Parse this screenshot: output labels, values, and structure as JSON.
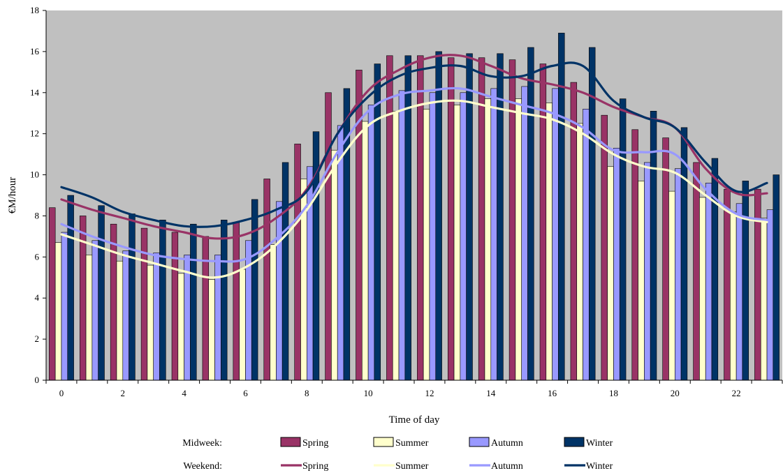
{
  "chart_data": {
    "type": "bar",
    "title": "",
    "xlabel": "Time of day",
    "ylabel": "€M/hour",
    "ylim": [
      0,
      18
    ],
    "yticks": [
      0,
      2,
      4,
      6,
      8,
      10,
      12,
      14,
      16,
      18
    ],
    "xticks": [
      0,
      2,
      4,
      6,
      8,
      10,
      12,
      14,
      16,
      18,
      20,
      22
    ],
    "x": [
      0,
      1,
      2,
      3,
      4,
      5,
      6,
      7,
      8,
      9,
      10,
      11,
      12,
      13,
      14,
      15,
      16,
      17,
      18,
      19,
      20,
      21,
      22,
      23
    ],
    "plot_background": "#c0c0c0",
    "grid": false,
    "legend_position": "bottom",
    "legend": {
      "midweek_label": "Midweek:",
      "weekend_label": "Weekend:"
    },
    "midweek_series": [
      {
        "name": "Spring",
        "color": "#993366",
        "values": [
          8.4,
          8.0,
          7.6,
          7.4,
          7.2,
          7.0,
          7.7,
          9.8,
          11.5,
          14.0,
          15.1,
          15.8,
          15.8,
          15.7,
          15.7,
          15.6,
          15.4,
          14.5,
          12.9,
          12.2,
          11.8,
          10.6,
          9.3,
          9.3
        ]
      },
      {
        "name": "Summer",
        "color": "#ffffcc",
        "values": [
          6.7,
          6.1,
          5.8,
          5.6,
          5.2,
          4.9,
          5.4,
          6.6,
          9.8,
          11.2,
          12.6,
          13.1,
          13.2,
          13.4,
          13.7,
          13.7,
          13.5,
          12.5,
          10.4,
          9.7,
          9.2,
          8.9,
          8.2,
          7.9
        ]
      },
      {
        "name": "Autumn",
        "color": "#9999ff",
        "values": [
          7.2,
          6.8,
          6.3,
          6.2,
          6.1,
          6.1,
          6.8,
          8.7,
          10.4,
          12.4,
          13.4,
          14.1,
          14.0,
          14.0,
          14.2,
          14.3,
          14.2,
          13.2,
          11.3,
          10.6,
          10.3,
          9.6,
          8.6,
          8.3
        ]
      },
      {
        "name": "Winter",
        "color": "#003366",
        "values": [
          9.0,
          8.5,
          8.1,
          7.8,
          7.6,
          7.8,
          8.8,
          10.6,
          12.1,
          14.2,
          15.4,
          15.8,
          16.0,
          15.9,
          15.9,
          16.2,
          16.9,
          16.2,
          13.7,
          13.1,
          12.3,
          10.8,
          9.7,
          10.0
        ]
      }
    ],
    "weekend_series": [
      {
        "name": "Spring",
        "color": "#993366",
        "values": [
          8.8,
          8.3,
          7.9,
          7.5,
          7.2,
          6.9,
          7.1,
          7.9,
          9.3,
          12.0,
          14.1,
          15.1,
          15.7,
          15.8,
          15.3,
          14.7,
          14.4,
          14.0,
          13.3,
          12.8,
          12.3,
          10.3,
          9.1,
          9.1
        ]
      },
      {
        "name": "Summer",
        "color": "#ffffcc",
        "values": [
          7.1,
          6.6,
          6.1,
          5.7,
          5.3,
          5.0,
          5.5,
          6.6,
          8.3,
          10.6,
          12.4,
          13.1,
          13.5,
          13.6,
          13.3,
          13.0,
          12.7,
          12.0,
          11.0,
          10.4,
          10.1,
          9.0,
          8.0,
          7.7
        ]
      },
      {
        "name": "Autumn",
        "color": "#9999ff",
        "values": [
          7.6,
          7.0,
          6.5,
          6.1,
          5.9,
          5.8,
          5.9,
          6.9,
          8.5,
          11.1,
          13.1,
          13.9,
          14.1,
          14.2,
          13.8,
          13.4,
          13.0,
          12.3,
          11.2,
          11.1,
          11.0,
          9.3,
          8.1,
          7.8
        ]
      },
      {
        "name": "Winter",
        "color": "#003366",
        "values": [
          9.4,
          8.9,
          8.2,
          7.8,
          7.5,
          7.5,
          7.8,
          8.3,
          9.2,
          12.0,
          13.8,
          14.8,
          15.2,
          15.3,
          14.8,
          14.8,
          15.3,
          15.3,
          13.6,
          12.8,
          12.3,
          10.6,
          9.2,
          9.6
        ]
      }
    ]
  }
}
